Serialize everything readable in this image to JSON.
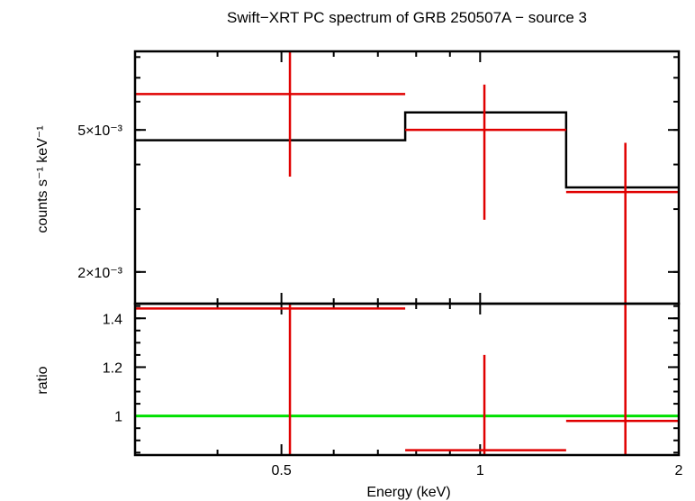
{
  "chart_data": {
    "type": "scatter",
    "title": "Swift−XRT PC spectrum of GRB 250507A − source 3",
    "xlabel": "Energy (keV)",
    "x_scale": "log",
    "xlim": [
      0.3,
      2.0
    ],
    "x_ticks": [
      {
        "value": 0.5,
        "label": "0.5"
      },
      {
        "value": 1,
        "label": "1"
      },
      {
        "value": 2,
        "label": "2"
      }
    ],
    "panels": [
      {
        "name": "spectrum",
        "ylabel": "counts s⁻¹ keV⁻¹",
        "y_scale": "log",
        "ylim": [
          0.00163,
          0.0083
        ],
        "y_ticks": [
          {
            "value": 0.002,
            "label": "2×10⁻³"
          },
          {
            "value": 0.005,
            "label": "5×10⁻³"
          }
        ],
        "data": {
          "color": "#e00000",
          "points": [
            {
              "x": 0.515,
              "xlo": 0.3,
              "xhi": 0.77,
              "y": 0.0063,
              "ylo": 0.0037,
              "yhi": 0.0083
            },
            {
              "x": 1.015,
              "xlo": 0.77,
              "xhi": 1.35,
              "y": 0.005,
              "ylo": 0.0028,
              "yhi": 0.0067
            },
            {
              "x": 1.66,
              "xlo": 1.35,
              "xhi": 2.0,
              "y": 0.00335,
              "ylo": 0.00163,
              "yhi": 0.0046
            }
          ]
        },
        "model": {
          "color": "#000000",
          "bins": [
            {
              "xlo": 0.3,
              "xhi": 0.77,
              "y": 0.00468
            },
            {
              "xlo": 0.77,
              "xhi": 1.35,
              "y": 0.0056
            },
            {
              "xlo": 1.35,
              "xhi": 2.0,
              "y": 0.00345
            }
          ]
        }
      },
      {
        "name": "ratio",
        "ylabel": "ratio",
        "y_scale": "linear",
        "ylim": [
          0.84,
          1.46
        ],
        "y_ticks": [
          {
            "value": 1,
            "label": "1"
          },
          {
            "value": 1.2,
            "label": "1.2"
          },
          {
            "value": 1.4,
            "label": "1.4"
          }
        ],
        "data": {
          "color": "#e00000",
          "points": [
            {
              "x": 0.515,
              "xlo": 0.3,
              "xhi": 0.77,
              "y": 1.44,
              "ylo": 0.84,
              "yhi": 1.46
            },
            {
              "x": 1.015,
              "xlo": 0.77,
              "xhi": 1.35,
              "y": 0.86,
              "ylo": 0.84,
              "yhi": 1.25
            },
            {
              "x": 1.66,
              "xlo": 1.35,
              "xhi": 2.0,
              "y": 0.98,
              "ylo": 0.84,
              "yhi": 1.46
            }
          ]
        },
        "reference_line": {
          "y": 1,
          "color": "#00e000"
        }
      }
    ]
  }
}
